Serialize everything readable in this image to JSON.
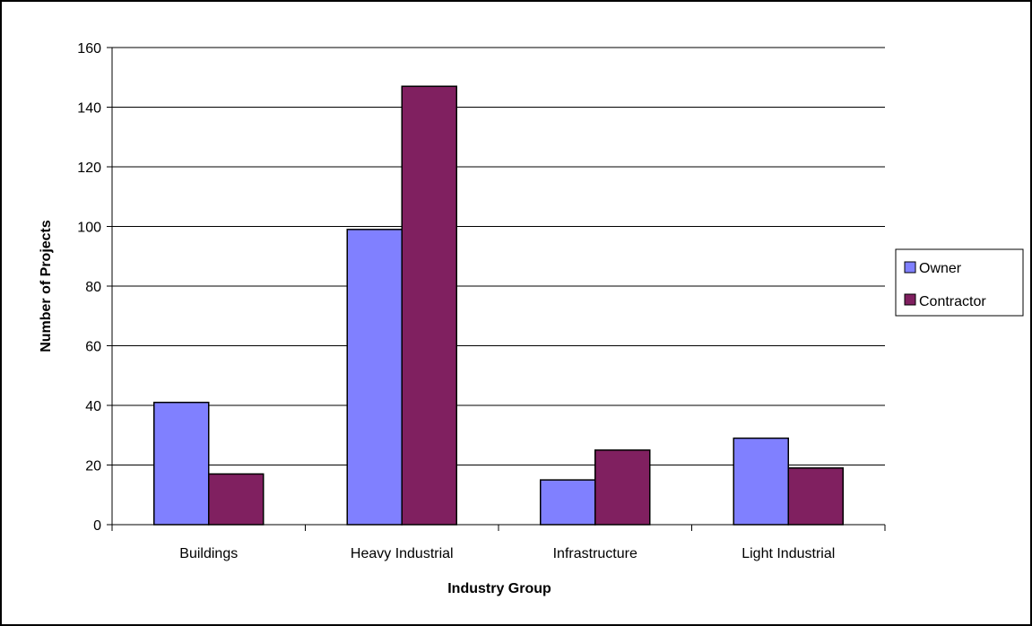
{
  "chart_data": {
    "type": "bar",
    "title": "",
    "xlabel": "Industry Group",
    "ylabel": "Number of Projects",
    "categories": [
      "Buildings",
      "Heavy Industrial",
      "Infrastructure",
      "Light Industrial"
    ],
    "series": [
      {
        "name": "Owner",
        "color": "#8080ff",
        "values": [
          41,
          99,
          15,
          29
        ]
      },
      {
        "name": "Contractor",
        "color": "#802060",
        "values": [
          17,
          147,
          25,
          19
        ]
      }
    ],
    "ylim": [
      0,
      160
    ],
    "yticks": [
      0,
      20,
      40,
      60,
      80,
      100,
      120,
      140,
      160
    ],
    "grid": true,
    "legend": "right"
  }
}
